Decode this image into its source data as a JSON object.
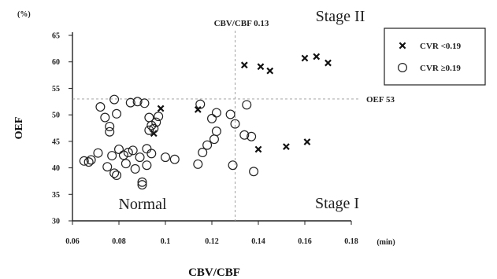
{
  "chart_data": {
    "type": "scatter",
    "title": "",
    "xlabel": "CBV/CBF",
    "ylabel": "OEF",
    "x_unit": "(min)",
    "y_unit": "(%)",
    "xlim": [
      0.06,
      0.18
    ],
    "ylim": [
      30,
      65
    ],
    "x_ticks": [
      "0.06",
      "0.08",
      "0.1",
      "0.12",
      "0.14",
      "0.16",
      "0.18"
    ],
    "y_ticks": [
      "30",
      "35",
      "40",
      "45",
      "50",
      "55",
      "60",
      "65"
    ],
    "grid": false,
    "reference_lines": [
      {
        "axis": "x",
        "value": 0.13,
        "label": "CBV/CBF 0.13",
        "style": "dashed"
      },
      {
        "axis": "y",
        "value": 53,
        "label": "OEF 53",
        "style": "dashed"
      }
    ],
    "region_labels": [
      "Stage II",
      "Normal",
      "Stage I"
    ],
    "legend_position": "top-right",
    "series": [
      {
        "name": "CVR <0.19",
        "marker": "x",
        "points": [
          [
            0.098,
            51.2
          ],
          [
            0.095,
            46.5
          ],
          [
            0.114,
            51.0
          ],
          [
            0.134,
            59.4
          ],
          [
            0.141,
            59.1
          ],
          [
            0.145,
            58.3
          ],
          [
            0.16,
            60.7
          ],
          [
            0.165,
            61.0
          ],
          [
            0.17,
            59.8
          ],
          [
            0.14,
            43.5
          ],
          [
            0.152,
            44.0
          ],
          [
            0.161,
            44.9
          ]
        ]
      },
      {
        "name": "CVR ≥0.19",
        "marker": "circle",
        "points": [
          [
            0.065,
            41.3
          ],
          [
            0.067,
            41.1
          ],
          [
            0.068,
            41.5
          ],
          [
            0.071,
            42.8
          ],
          [
            0.072,
            51.5
          ],
          [
            0.074,
            49.5
          ],
          [
            0.075,
            40.2
          ],
          [
            0.076,
            47.8
          ],
          [
            0.076,
            46.8
          ],
          [
            0.077,
            42.3
          ],
          [
            0.078,
            52.9
          ],
          [
            0.078,
            39.0
          ],
          [
            0.079,
            50.2
          ],
          [
            0.079,
            38.6
          ],
          [
            0.08,
            43.5
          ],
          [
            0.082,
            42.4
          ],
          [
            0.083,
            40.8
          ],
          [
            0.084,
            42.9
          ],
          [
            0.085,
            52.3
          ],
          [
            0.086,
            43.3
          ],
          [
            0.087,
            39.8
          ],
          [
            0.088,
            52.5
          ],
          [
            0.089,
            42.0
          ],
          [
            0.09,
            37.3
          ],
          [
            0.09,
            36.8
          ],
          [
            0.091,
            52.2
          ],
          [
            0.092,
            43.6
          ],
          [
            0.092,
            40.5
          ],
          [
            0.093,
            49.5
          ],
          [
            0.093,
            47.1
          ],
          [
            0.094,
            48.0
          ],
          [
            0.094,
            42.7
          ],
          [
            0.095,
            47.4
          ],
          [
            0.096,
            48.6
          ],
          [
            0.097,
            49.7
          ],
          [
            0.1,
            42.0
          ],
          [
            0.104,
            41.6
          ],
          [
            0.114,
            40.7
          ],
          [
            0.115,
            52.0
          ],
          [
            0.116,
            42.9
          ],
          [
            0.118,
            44.3
          ],
          [
            0.12,
            49.3
          ],
          [
            0.121,
            45.4
          ],
          [
            0.122,
            50.4
          ],
          [
            0.122,
            46.9
          ],
          [
            0.128,
            50.1
          ],
          [
            0.129,
            40.5
          ],
          [
            0.13,
            48.3
          ],
          [
            0.134,
            46.2
          ],
          [
            0.135,
            51.9
          ],
          [
            0.137,
            45.9
          ],
          [
            0.138,
            39.3
          ]
        ]
      }
    ]
  },
  "legend": {
    "items": [
      {
        "symbol": "x",
        "label": "CVR <0.19"
      },
      {
        "symbol": "circle",
        "label": "CVR ≥0.19"
      }
    ]
  }
}
